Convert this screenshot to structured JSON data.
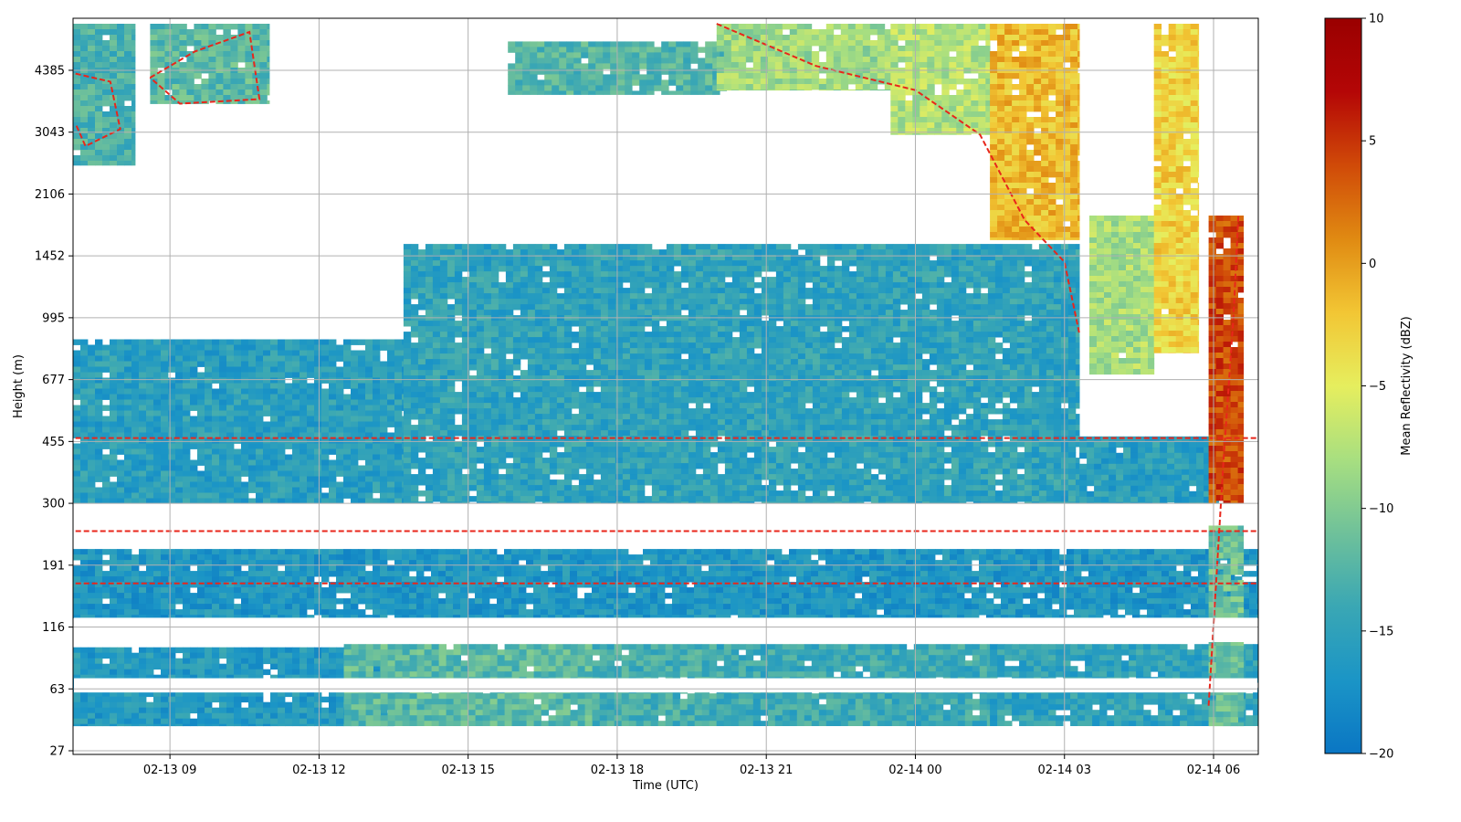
{
  "chart_data": {
    "type": "heatmap",
    "title": "",
    "xlabel": "Time (UTC)",
    "ylabel": "Height (m)",
    "x_ticks": [
      "02-13 09",
      "02-13 12",
      "02-13 15",
      "02-13 18",
      "02-13 21",
      "02-14 00",
      "02-14 03",
      "02-14 06"
    ],
    "x_tick_hours": [
      9,
      12,
      15,
      18,
      21,
      24,
      27,
      30
    ],
    "xlim_hours": [
      7.05,
      30.9
    ],
    "y_ticks": [
      "27",
      "63",
      "116",
      "191",
      "300",
      "455",
      "677",
      "995",
      "1452",
      "2106",
      "3043",
      "4385"
    ],
    "grid": true,
    "contour": {
      "style": "dashed",
      "color": "#e8261b"
    },
    "colorbar": {
      "label": "Mean Reflectivity (dBZ)",
      "range": [
        -20,
        10
      ],
      "ticks": [
        10,
        5,
        0,
        -5,
        -10,
        -15,
        -20
      ],
      "tick_labels": [
        "10",
        "5",
        "0",
        "−5",
        "−10",
        "−15",
        "−20"
      ],
      "colormap": [
        "#0a76c4",
        "#1b95c6",
        "#3aa7b4",
        "#6fc19a",
        "#a8df80",
        "#e6ee5e",
        "#f2c634",
        "#e08a12",
        "#d04a08",
        "#b40606",
        "#9a0000"
      ]
    },
    "regions": [
      {
        "name": "low fog layer 01",
        "t0": 7.05,
        "t1": 13.5,
        "y0": 38,
        "y1": 95,
        "dbz": -16.0
      },
      {
        "name": "low fog layer 02",
        "t0": 12.5,
        "t1": 17.5,
        "y0": 38,
        "y1": 98,
        "dbz": -12.0
      },
      {
        "name": "low fog layer 03",
        "t0": 17.5,
        "t1": 20.0,
        "y0": 38,
        "y1": 98,
        "dbz": -13.5
      },
      {
        "name": "low fog layer 04",
        "t0": 20.0,
        "t1": 25.5,
        "y0": 38,
        "y1": 98,
        "dbz": -14.0
      },
      {
        "name": "low fog layer 05",
        "t0": 25.5,
        "t1": 30.9,
        "y0": 38,
        "y1": 98,
        "dbz": -15.0
      },
      {
        "name": "near-surface band",
        "t0": 7.05,
        "t1": 30.9,
        "y0": 125,
        "y1": 215,
        "dbz": -16.5
      },
      {
        "name": "boundary layer 01",
        "t0": 7.05,
        "t1": 13.7,
        "y0": 300,
        "y1": 870,
        "dbz": -15.5
      },
      {
        "name": "boundary layer 02",
        "t0": 13.7,
        "t1": 27.3,
        "y0": 300,
        "y1": 1560,
        "dbz": -15.0
      },
      {
        "name": "boundary layer 03",
        "t0": 27.3,
        "t1": 30.1,
        "y0": 300,
        "y1": 470,
        "dbz": -15.5
      },
      {
        "name": "upper cloud 01",
        "t0": 7.05,
        "t1": 8.3,
        "y0": 2500,
        "y1": 6000,
        "dbz": -13.0
      },
      {
        "name": "upper cloud 02",
        "t0": 8.6,
        "t1": 11.0,
        "y0": 3600,
        "y1": 6000,
        "dbz": -12.0
      },
      {
        "name": "upper cloud 03",
        "t0": 15.8,
        "t1": 20.2,
        "y0": 3800,
        "y1": 5200,
        "dbz": -12.5
      },
      {
        "name": "upper cloud 04",
        "t0": 20.0,
        "t1": 23.5,
        "y0": 3900,
        "y1": 6000,
        "dbz": -8.5
      },
      {
        "name": "upper cloud 05",
        "t0": 23.5,
        "t1": 25.5,
        "y0": 3000,
        "y1": 6000,
        "dbz": -7.5
      },
      {
        "name": "upper cloud 06",
        "t0": 25.5,
        "t1": 27.3,
        "y0": 1600,
        "y1": 6000,
        "dbz": -1.5
      },
      {
        "name": "upper cloud 07",
        "t0": 27.5,
        "t1": 28.8,
        "y0": 700,
        "y1": 1850,
        "dbz": -8.0
      },
      {
        "name": "upper cloud 08",
        "t0": 28.8,
        "t1": 29.7,
        "y0": 800,
        "y1": 6000,
        "dbz": -3.0
      },
      {
        "name": "upper cloud 09",
        "t0": 29.9,
        "t1": 30.6,
        "y0": 300,
        "y1": 1850,
        "dbz": 4.0
      },
      {
        "name": "upper cloud 10",
        "t0": 29.9,
        "t1": 30.6,
        "y0": 38,
        "y1": 300,
        "dbz": -11.0
      }
    ]
  }
}
